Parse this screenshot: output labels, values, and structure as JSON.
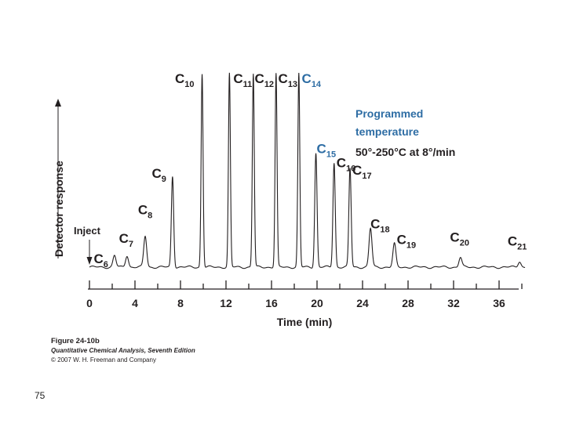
{
  "chart_data": {
    "type": "line",
    "xlabel": "Time (min)",
    "ylabel": "Detector response",
    "x_ticks": [
      0,
      4,
      8,
      12,
      16,
      20,
      24,
      28,
      32,
      36
    ],
    "xlim": [
      0,
      38.5
    ],
    "inject_label": "Inject",
    "annotation": {
      "line1": "Programmed",
      "line2": "temperature",
      "line3": "50°-250°C at 8°/min",
      "color": "#2e6da4"
    },
    "peaks": [
      {
        "base": "C",
        "sub": "6",
        "t": 2.2,
        "h": 0.06
      },
      {
        "base": "C",
        "sub": "7",
        "t": 3.3,
        "h": 0.06
      },
      {
        "base": "C",
        "sub": "8",
        "t": 4.9,
        "h": 0.16
      },
      {
        "base": "C",
        "sub": "9",
        "t": 7.3,
        "h": 0.47
      },
      {
        "base": "C",
        "sub": "10",
        "t": 9.9,
        "h": 1.0
      },
      {
        "base": "C",
        "sub": "11",
        "t": 12.3,
        "h": 1.0
      },
      {
        "base": "C",
        "sub": "12",
        "t": 14.4,
        "h": 1.0
      },
      {
        "base": "C",
        "sub": "13",
        "t": 16.4,
        "h": 1.0
      },
      {
        "base": "C",
        "sub": "14",
        "t": 18.4,
        "h": 1.0,
        "color": "#2e6da4"
      },
      {
        "base": "C",
        "sub": "15",
        "t": 19.9,
        "h": 0.59,
        "color": "#2e6da4"
      },
      {
        "base": "C",
        "sub": "16",
        "t": 21.5,
        "h": 0.54
      },
      {
        "base": "C",
        "sub": "17",
        "t": 22.9,
        "h": 0.51
      },
      {
        "base": "C",
        "sub": "18",
        "t": 24.7,
        "h": 0.2
      },
      {
        "base": "C",
        "sub": "19",
        "t": 26.8,
        "h": 0.12
      },
      {
        "base": "C",
        "sub": "20",
        "t": 32.6,
        "h": 0.05
      },
      {
        "base": "C",
        "sub": "21",
        "t": 37.8,
        "h": 0.03
      }
    ],
    "colors": {
      "trace": "#231f20",
      "accent": "#2e6da4"
    }
  },
  "caption": {
    "figure": "Figure 24-10b",
    "book": "Quantitative Chemical Analysis, Seventh Edition",
    "copyright": "© 2007 W. H. Freeman and Company"
  },
  "slide_number": "75"
}
